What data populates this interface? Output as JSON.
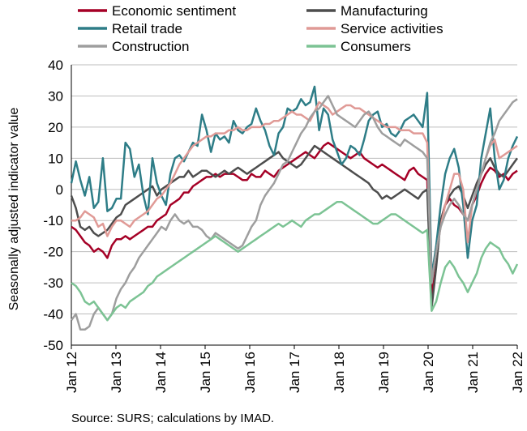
{
  "chart_data": {
    "type": "line",
    "ylabel": "Seasonally adjusted indicator value",
    "ylim": [
      -50,
      40
    ],
    "yticks": [
      40,
      30,
      20,
      10,
      0,
      -10,
      -20,
      -30,
      -40,
      -50
    ],
    "xticks": [
      "Jan 12",
      "Jan 13",
      "Jan 14",
      "Jan 15",
      "Jan 16",
      "Jan 17",
      "Jan 18",
      "Jan 19",
      "Jan 20",
      "Jan 21",
      "Jan 22"
    ],
    "grid": "horizontal",
    "legend_position": "top",
    "series": [
      {
        "name": "Economic sentiment",
        "color": "#a50026",
        "values": [
          -12,
          -13,
          -15,
          -17,
          -18,
          -20,
          -19,
          -20,
          -22,
          -18,
          -16,
          -16,
          -15,
          -16,
          -15,
          -14,
          -13,
          -12,
          -12,
          -10,
          -9,
          -8,
          -5,
          -4,
          -3,
          -1,
          -1,
          1,
          2,
          3,
          4,
          4,
          5,
          4,
          5,
          5,
          5,
          4,
          3,
          3,
          5,
          4,
          4,
          6,
          5,
          4,
          6,
          7,
          8,
          9,
          10,
          11,
          12,
          11,
          10,
          12,
          14,
          15,
          14,
          13,
          12,
          11,
          10,
          11,
          12,
          10,
          9,
          8,
          7,
          8,
          7,
          6,
          5,
          4,
          3,
          6,
          7,
          5,
          4,
          3,
          -36,
          -20,
          -10,
          -5,
          -3,
          -5,
          -6,
          -8,
          -10,
          -5,
          -2,
          2,
          5,
          7,
          6,
          4,
          5,
          3,
          5,
          6
        ]
      },
      {
        "name": "Manufacturing",
        "color": "#4d4d4d",
        "values": [
          -2,
          -6,
          -12,
          -13,
          -12,
          -14,
          -15,
          -14,
          -13,
          -11,
          -9,
          -8,
          -5,
          -4,
          -3,
          -2,
          -1,
          0,
          1,
          -2,
          0,
          1,
          2,
          3,
          4,
          4,
          6,
          4,
          5,
          6,
          6,
          5,
          4,
          5,
          6,
          5,
          6,
          7,
          6,
          5,
          6,
          7,
          8,
          9,
          10,
          11,
          12,
          10,
          9,
          8,
          7,
          8,
          10,
          12,
          14,
          13,
          12,
          11,
          10,
          9,
          8,
          7,
          6,
          5,
          4,
          3,
          2,
          0,
          -1,
          -3,
          -2,
          -3,
          -2,
          -1,
          0,
          -1,
          -2,
          -3,
          -1,
          0,
          -38,
          -25,
          -10,
          -5,
          -2,
          0,
          1,
          -2,
          -6,
          -2,
          2,
          5,
          8,
          10,
          7,
          5,
          4,
          6,
          8,
          10
        ]
      },
      {
        "name": "Retail trade",
        "color": "#2e7d87",
        "values": [
          2,
          9,
          3,
          -2,
          4,
          -6,
          -4,
          10,
          -7,
          -6,
          -3,
          -3,
          15,
          13,
          4,
          8,
          -2,
          -8,
          10,
          2,
          -2,
          -5,
          5,
          10,
          11,
          9,
          12,
          15,
          14,
          24,
          19,
          12,
          18,
          16,
          17,
          15,
          22,
          19,
          18,
          20,
          21,
          26,
          22,
          19,
          14,
          11,
          18,
          20,
          26,
          25,
          26,
          29,
          27,
          28,
          33,
          19,
          26,
          24,
          16,
          12,
          8,
          10,
          14,
          13,
          11,
          16,
          22,
          24,
          25,
          20,
          21,
          18,
          17,
          19,
          22,
          23,
          24,
          22,
          20,
          31,
          -28,
          -18,
          -5,
          5,
          10,
          13,
          7,
          -5,
          -22,
          -10,
          -5,
          10,
          18,
          26,
          10,
          0,
          3,
          10,
          14,
          17
        ]
      },
      {
        "name": "Service activities",
        "color": "#e09a96",
        "values": [
          -10,
          -10,
          -9,
          -7,
          -8,
          -9,
          -12,
          -11,
          -15,
          -12,
          -10,
          -10,
          -11,
          -12,
          -10,
          -9,
          -8,
          -7,
          -5,
          -3,
          -2,
          0,
          2,
          5,
          8,
          10,
          12,
          14,
          15,
          16,
          17,
          17,
          18,
          18,
          18,
          19,
          19,
          20,
          19,
          19,
          20,
          20,
          20,
          21,
          21,
          22,
          22,
          23,
          24,
          25,
          24,
          24,
          23,
          22,
          25,
          28,
          27,
          26,
          24,
          25,
          26,
          27,
          27,
          26,
          26,
          25,
          24,
          23,
          22,
          21,
          20,
          20,
          20,
          19,
          19,
          19,
          18,
          18,
          18,
          15,
          -30,
          -20,
          -12,
          -5,
          0,
          5,
          5,
          0,
          -17,
          -5,
          0,
          5,
          10,
          14,
          16,
          10,
          11,
          12,
          13,
          14
        ]
      },
      {
        "name": "Construction",
        "color": "#9e9e9e",
        "values": [
          -42,
          -40,
          -45,
          -45,
          -44,
          -40,
          -38,
          -40,
          -42,
          -40,
          -35,
          -32,
          -30,
          -27,
          -25,
          -22,
          -20,
          -18,
          -16,
          -14,
          -12,
          -13,
          -10,
          -8,
          -10,
          -11,
          -10,
          -12,
          -12,
          -13,
          -15,
          -16,
          -14,
          -15,
          -16,
          -17,
          -18,
          -19,
          -18,
          -15,
          -12,
          -10,
          -5,
          -2,
          0,
          2,
          5,
          8,
          9,
          12,
          15,
          18,
          20,
          23,
          25,
          26,
          28,
          30,
          27,
          24,
          23,
          22,
          21,
          20,
          22,
          24,
          25,
          23,
          20,
          18,
          17,
          16,
          15,
          14,
          16,
          15,
          14,
          13,
          12,
          10,
          -30,
          -20,
          -12,
          -8,
          -5,
          -3,
          -5,
          -8,
          -10,
          -5,
          0,
          5,
          10,
          15,
          18,
          22,
          24,
          26,
          28,
          29
        ]
      },
      {
        "name": "Consumers",
        "color": "#7cc394",
        "values": [
          -30,
          -31,
          -33,
          -36,
          -37,
          -36,
          -38,
          -40,
          -42,
          -40,
          -38,
          -37,
          -38,
          -36,
          -35,
          -34,
          -33,
          -31,
          -30,
          -28,
          -27,
          -26,
          -25,
          -24,
          -23,
          -22,
          -21,
          -20,
          -19,
          -18,
          -17,
          -16,
          -15,
          -16,
          -17,
          -18,
          -19,
          -20,
          -19,
          -18,
          -17,
          -16,
          -15,
          -14,
          -13,
          -12,
          -11,
          -12,
          -11,
          -10,
          -11,
          -12,
          -10,
          -9,
          -8,
          -8,
          -7,
          -6,
          -5,
          -4,
          -4,
          -5,
          -6,
          -7,
          -8,
          -9,
          -10,
          -11,
          -11,
          -10,
          -9,
          -8,
          -8,
          -9,
          -10,
          -11,
          -12,
          -13,
          -14,
          -13,
          -39,
          -36,
          -30,
          -25,
          -23,
          -25,
          -28,
          -30,
          -33,
          -30,
          -27,
          -22,
          -19,
          -17,
          -18,
          -19,
          -22,
          -24,
          -27,
          -24
        ]
      }
    ]
  },
  "source_text": "Source: SURS; calculations by IMAD."
}
